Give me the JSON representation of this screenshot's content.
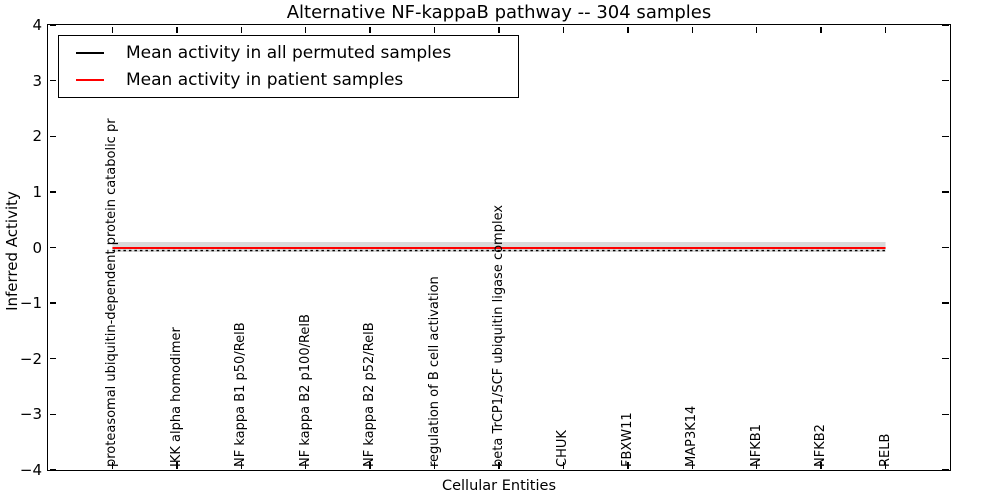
{
  "chart_data": {
    "type": "line",
    "title": "Alternative NF-kappaB pathway -- 304 samples",
    "xlabel": "Cellular Entities",
    "ylabel": "Inferred Activity",
    "ylim": [
      -4,
      4
    ],
    "xlim_units": [
      -1,
      13
    ],
    "grid": false,
    "legend_position": "upper left",
    "ytick_values": [
      4,
      3,
      2,
      1,
      0,
      -1,
      -2,
      -3,
      -4
    ],
    "ytick_labels": [
      "4",
      "3",
      "2",
      "1",
      "0",
      "−1",
      "−2",
      "−3",
      "−4"
    ],
    "categories": [
      "proteasomal ubiquitin-dependent protein catabolic pr",
      "IKK alpha homodimer",
      "NF kappa B1 p50/RelB",
      "NF kappa B2 p100/RelB",
      "NF kappa B2 p52/RelB",
      "regulation of B cell activation",
      "beta TrCP1/SCF ubiquitin ligase complex",
      "CHUK",
      "FBXW11",
      "MAP3K14",
      "NFKB1",
      "NFKB2",
      "RELB"
    ],
    "series": [
      {
        "name": "Mean activity in all permuted samples",
        "color": "#000000",
        "style": "solid-thin",
        "values": [
          -0.03,
          -0.03,
          -0.03,
          -0.03,
          -0.03,
          -0.03,
          -0.03,
          -0.03,
          -0.03,
          -0.03,
          -0.03,
          -0.03,
          -0.03
        ]
      },
      {
        "name": "Mean activity in patient samples",
        "color": "#ff0000",
        "style": "solid",
        "values": [
          -0.01,
          -0.01,
          -0.01,
          -0.01,
          -0.01,
          -0.01,
          -0.01,
          -0.01,
          -0.01,
          -0.01,
          -0.01,
          -0.01,
          -0.01
        ]
      }
    ],
    "band": {
      "color": "#d9d9d9",
      "upper": 0.1,
      "lower": -0.08
    }
  }
}
